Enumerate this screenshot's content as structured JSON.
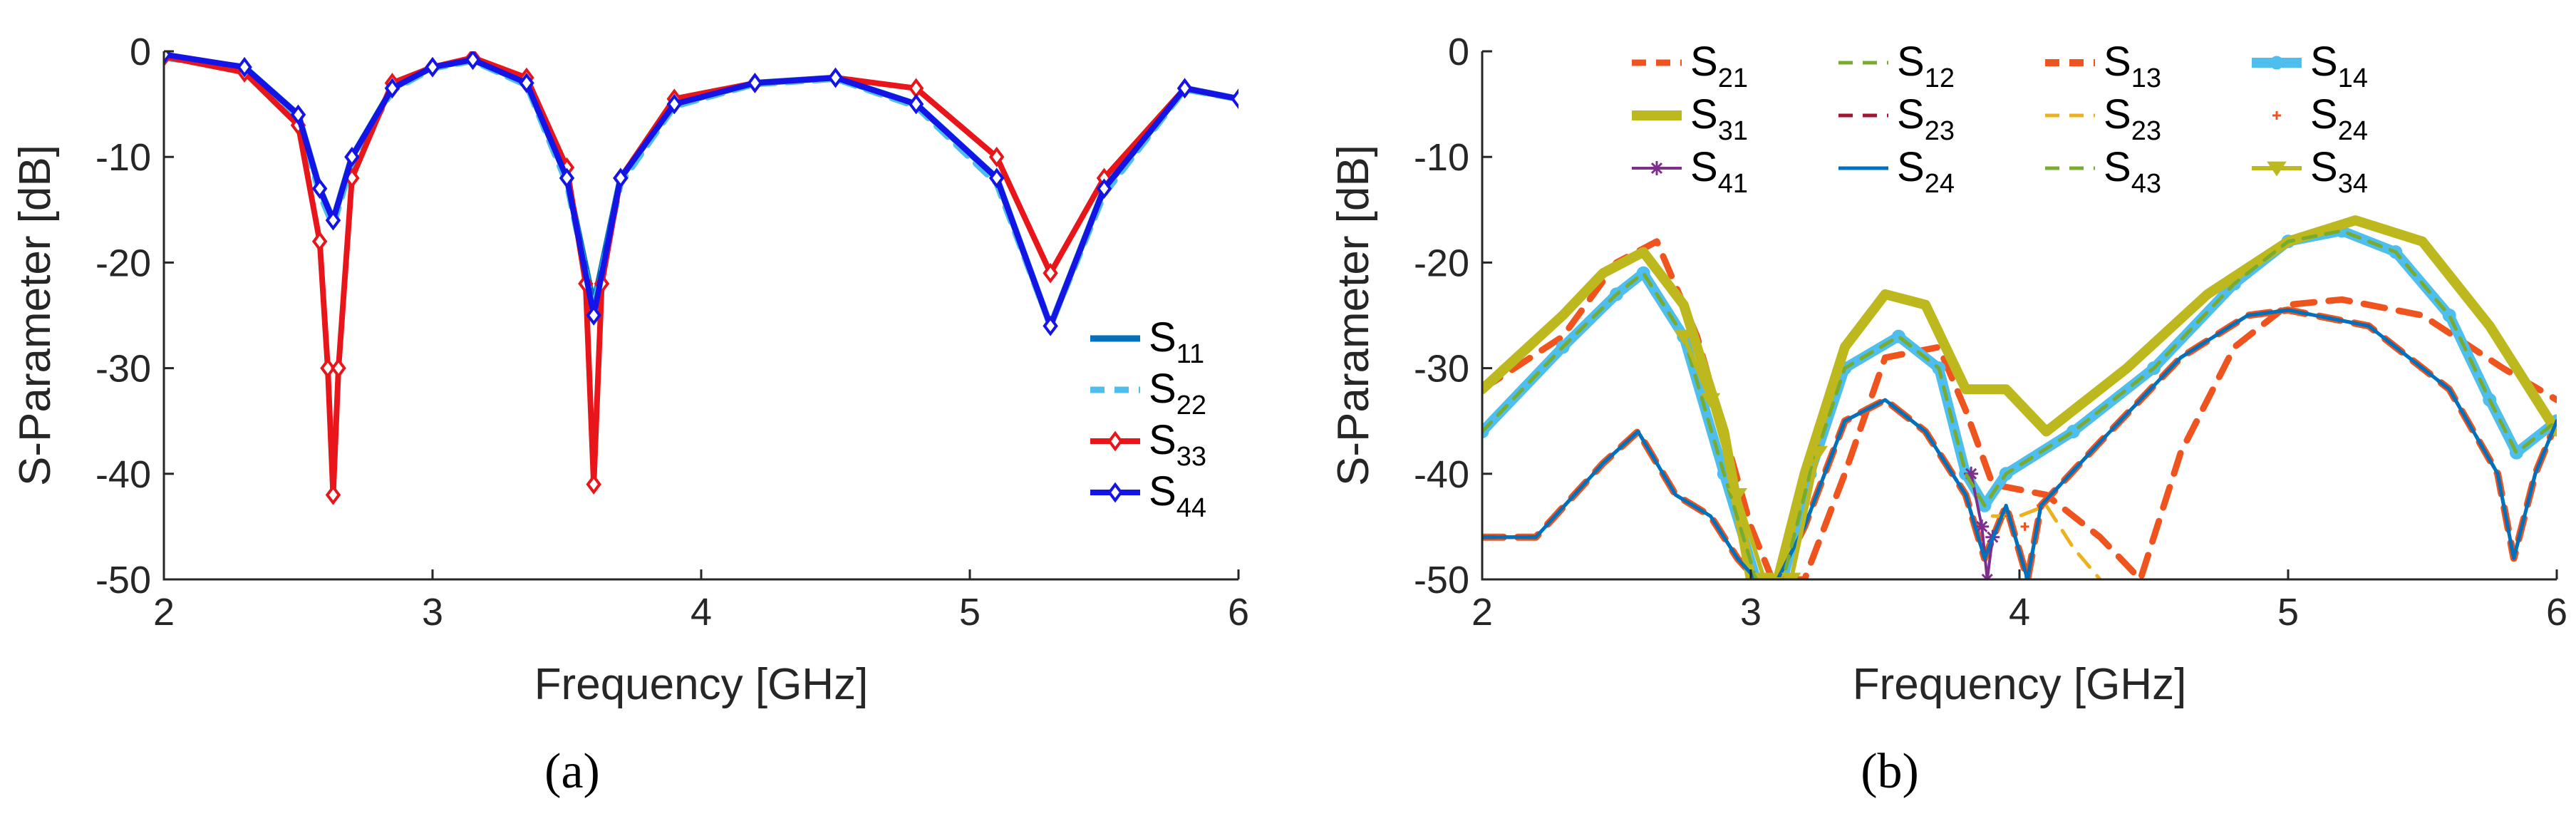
{
  "chart_data": [
    {
      "id": "a",
      "type": "line",
      "panel_label": "(a)",
      "xlabel": "Frequency [GHz]",
      "ylabel": "S-Parameter [dB]",
      "xlim": [
        2,
        6
      ],
      "ylim": [
        -50,
        0
      ],
      "xticks": [
        "2",
        "3",
        "4",
        "5",
        "6"
      ],
      "yticks": [
        "0",
        "-10",
        "-20",
        "-30",
        "-40",
        "-50"
      ],
      "legend_position": "right-lower",
      "series": [
        {
          "name": "S",
          "sub": "11",
          "color": "#0072BD",
          "width": 9,
          "marker": "none",
          "dash": "",
          "x": [
            2.0,
            2.3,
            2.5,
            2.58,
            2.63,
            2.7,
            2.85,
            3.0,
            3.15,
            3.35,
            3.5,
            3.6,
            3.7,
            3.9,
            4.2,
            4.5,
            4.8,
            5.1,
            5.3,
            5.5,
            5.8,
            6.0
          ],
          "y": [
            -0.5,
            -1.5,
            -6,
            -13,
            -16,
            -10,
            -3.5,
            -1.5,
            -0.8,
            -3,
            -12,
            -24,
            -12,
            -5,
            -3,
            -2.5,
            -5,
            -12,
            -26,
            -13,
            -3.5,
            -4.5
          ]
        },
        {
          "name": "S",
          "sub": "22",
          "color": "#4DBEEE",
          "width": 9,
          "marker": "none",
          "dash": "22,16",
          "x": [
            2.0,
            2.3,
            2.5,
            2.58,
            2.63,
            2.7,
            2.85,
            3.0,
            3.15,
            3.35,
            3.5,
            3.6,
            3.7,
            3.9,
            4.2,
            4.5,
            4.8,
            5.1,
            5.3,
            5.5,
            5.8,
            6.0
          ],
          "y": [
            -0.6,
            -1.6,
            -6.2,
            -13.5,
            -16.5,
            -10.5,
            -3.7,
            -1.6,
            -0.9,
            -3.2,
            -12.5,
            -24.5,
            -12.5,
            -5.2,
            -3.1,
            -2.6,
            -5.2,
            -12.5,
            -26,
            -13.5,
            -3.6,
            -4.5
          ]
        },
        {
          "name": "S",
          "sub": "33",
          "color": "#E8161A",
          "width": 8,
          "marker": "diamond",
          "dash": "",
          "x": [
            2.0,
            2.3,
            2.5,
            2.58,
            2.61,
            2.63,
            2.65,
            2.7,
            2.85,
            3.0,
            3.15,
            3.35,
            3.5,
            3.57,
            3.6,
            3.63,
            3.7,
            3.9,
            4.2,
            4.5,
            4.8,
            5.1,
            5.3,
            5.5,
            5.8,
            6.0
          ],
          "y": [
            -0.5,
            -2,
            -7,
            -18,
            -30,
            -42,
            -30,
            -12,
            -3,
            -1.5,
            -0.6,
            -2.5,
            -11,
            -22,
            -41,
            -22,
            -12,
            -4.5,
            -3,
            -2.5,
            -3.5,
            -10,
            -21,
            -12,
            -3.5,
            -4.5
          ]
        },
        {
          "name": "S",
          "sub": "44",
          "color": "#1414E6",
          "width": 8,
          "marker": "diamond",
          "dash": "",
          "x": [
            2.0,
            2.3,
            2.5,
            2.58,
            2.63,
            2.7,
            2.85,
            3.0,
            3.15,
            3.35,
            3.5,
            3.6,
            3.7,
            3.9,
            4.2,
            4.5,
            4.8,
            5.1,
            5.3,
            5.5,
            5.8,
            6.0
          ],
          "y": [
            -0.3,
            -1.5,
            -6,
            -13,
            -16,
            -10,
            -3.5,
            -1.5,
            -0.8,
            -3,
            -12,
            -25,
            -12,
            -5,
            -3,
            -2.5,
            -5,
            -12,
            -26,
            -13,
            -3.5,
            -4.5
          ]
        }
      ]
    },
    {
      "id": "b",
      "type": "line",
      "panel_label": "(b)",
      "xlabel": "Frequency [GHz]",
      "ylabel": "S-Parameter [dB]",
      "xlim": [
        2,
        6
      ],
      "ylim": [
        -50,
        0
      ],
      "xticks": [
        "2",
        "3",
        "4",
        "5",
        "6"
      ],
      "yticks": [
        "0",
        "-10",
        "-20",
        "-30",
        "-40",
        "-50"
      ],
      "legend_position": "top",
      "series": [
        {
          "name": "S",
          "sub": "21",
          "color": "#F0541E",
          "width": 9,
          "marker": "none",
          "dash": "30,20",
          "x": [
            2.0,
            2.3,
            2.5,
            2.65,
            2.8,
            3.0,
            3.08,
            3.2,
            3.35,
            3.5,
            3.7,
            3.8,
            3.9,
            4.1,
            4.3,
            4.45,
            4.6,
            4.8,
            5.0,
            5.2,
            5.5,
            5.8,
            6.0
          ],
          "y": [
            -32,
            -27,
            -20,
            -18,
            -27,
            -45,
            -50,
            -50,
            -40,
            -29,
            -28,
            -34,
            -41,
            -42,
            -46,
            -50,
            -38,
            -28,
            -24,
            -23.5,
            -25,
            -30,
            -33
          ]
        },
        {
          "name": "S",
          "sub": "12",
          "color": "#77AC30",
          "width": 5,
          "marker": "none",
          "dash": "18,14",
          "x": [
            2.0,
            2.2,
            2.45,
            2.58,
            2.72,
            2.85,
            2.95,
            3.02,
            3.1,
            3.2,
            3.35,
            3.5,
            3.65,
            3.8,
            3.87,
            3.95,
            4.03,
            4.08,
            4.3,
            4.6,
            4.85,
            5.0,
            5.3,
            5.6,
            5.78,
            5.84,
            5.92,
            6.0
          ],
          "y": [
            -46,
            -46,
            -39,
            -36,
            -42,
            -44,
            -48,
            -50,
            -50,
            -45,
            -35,
            -33,
            -36,
            -42,
            -48,
            -43,
            -50,
            -43,
            -37,
            -29,
            -25,
            -24.5,
            -26,
            -32,
            -40,
            -48,
            -40,
            -35
          ]
        },
        {
          "name": "S",
          "sub": "13",
          "color": "#F0541E",
          "width": 10,
          "marker": "none",
          "dash": "30,20",
          "x": [
            2.0,
            2.2,
            2.45,
            2.58,
            2.72,
            2.85,
            2.95,
            3.02,
            3.1,
            3.2,
            3.35,
            3.5,
            3.65,
            3.8,
            3.87,
            3.95,
            4.03,
            4.08,
            4.3,
            4.6,
            4.85,
            5.0,
            5.3,
            5.6,
            5.78,
            5.84,
            5.92,
            6.0
          ],
          "y": [
            -46,
            -46,
            -39,
            -36,
            -42,
            -44,
            -48,
            -50,
            -50,
            -45,
            -35,
            -33,
            -36,
            -42,
            -48,
            -43,
            -50,
            -43,
            -37,
            -29,
            -25,
            -24.5,
            -26,
            -32,
            -40,
            -48,
            -40,
            -35
          ]
        },
        {
          "name": "S",
          "sub": "14",
          "color": "#4DBEEE",
          "width": 14,
          "marker": "circle",
          "dash": "",
          "x": [
            2.0,
            2.3,
            2.5,
            2.6,
            2.75,
            2.9,
            3.02,
            3.12,
            3.22,
            3.35,
            3.55,
            3.7,
            3.8,
            3.87,
            3.95,
            4.2,
            4.5,
            4.8,
            5.0,
            5.2,
            5.4,
            5.6,
            5.75,
            5.85,
            6.0
          ],
          "y": [
            -36,
            -28,
            -23,
            -21,
            -27,
            -40,
            -50,
            -50,
            -40,
            -30,
            -27,
            -30,
            -40,
            -43,
            -40,
            -36,
            -30,
            -22,
            -18,
            -17,
            -19,
            -25,
            -33,
            -38,
            -35
          ]
        },
        {
          "name": "S",
          "sub": "31",
          "color": "#BDB81E",
          "width": 14,
          "marker": "none",
          "dash": "",
          "x": [
            2.0,
            2.3,
            2.45,
            2.6,
            2.75,
            2.9,
            3.0,
            3.1,
            3.2,
            3.35,
            3.5,
            3.65,
            3.8,
            3.95,
            4.1,
            4.4,
            4.7,
            5.0,
            5.25,
            5.5,
            5.75,
            6.0
          ],
          "y": [
            -32,
            -25,
            -21,
            -19,
            -24,
            -36,
            -50,
            -50,
            -40,
            -28,
            -23,
            -24,
            -32,
            -32,
            -36,
            -30,
            -23,
            -18,
            -16,
            -18,
            -26,
            -36
          ]
        },
        {
          "name": "S",
          "sub": "23",
          "color": "#A2142F",
          "width": 5,
          "marker": "none",
          "dash": "18,14",
          "x": [
            2.0,
            2.2,
            2.45,
            2.58,
            2.72,
            2.85,
            2.95,
            3.02,
            3.1,
            3.2,
            3.35,
            3.5,
            3.65,
            3.8,
            3.87,
            3.95,
            4.03,
            4.08,
            4.3,
            4.6,
            4.85,
            5.0,
            5.3,
            5.6,
            5.78,
            5.84,
            5.92,
            6.0
          ],
          "y": [
            -46,
            -46,
            -39,
            -36,
            -42,
            -44,
            -48,
            -50,
            -50,
            -45,
            -35,
            -33,
            -36,
            -42,
            -48,
            -43,
            -50,
            -43,
            -37,
            -29,
            -25,
            -24.5,
            -26,
            -32,
            -40,
            -48,
            -40,
            -35
          ]
        },
        {
          "name": "S",
          "sub": "23",
          "color": "#EDB120",
          "width": 5,
          "marker": "none",
          "dash": "24,16",
          "x": [
            3.9,
            4.0,
            4.1,
            4.2,
            4.3
          ],
          "y": [
            -44,
            -44,
            -43,
            -47,
            -50
          ]
        },
        {
          "name": "S",
          "sub": "24",
          "color": "#F0541E",
          "width": 0,
          "marker": "dot",
          "dash": "",
          "x": [
            3.96,
            4.02,
            4.08
          ],
          "y": [
            -44,
            -45,
            -43
          ]
        },
        {
          "name": "S",
          "sub": "41",
          "color": "#7E2F8E",
          "width": 4,
          "marker": "star",
          "dash": "",
          "x": [
            3.82,
            3.86,
            3.88,
            3.9
          ],
          "y": [
            -40,
            -45,
            -50,
            -46
          ]
        },
        {
          "name": "S",
          "sub": "24",
          "color": "#0072BD",
          "width": 5,
          "marker": "none",
          "dash": "",
          "x": [
            2.0,
            2.2,
            2.45,
            2.58,
            2.72,
            2.85,
            2.95,
            3.02,
            3.1,
            3.2,
            3.35,
            3.5,
            3.65,
            3.8,
            3.87,
            3.95,
            4.03,
            4.08,
            4.3,
            4.6,
            4.85,
            5.0,
            5.3,
            5.6,
            5.78,
            5.84,
            5.92,
            6.0
          ],
          "y": [
            -46,
            -46,
            -39,
            -36,
            -42,
            -44,
            -48,
            -50,
            -50,
            -45,
            -35,
            -33,
            -36,
            -42,
            -48,
            -43,
            -50,
            -43,
            -37,
            -29,
            -25,
            -24.5,
            -26,
            -32,
            -40,
            -48,
            -40,
            -35
          ]
        },
        {
          "name": "S",
          "sub": "43",
          "color": "#77AC30",
          "width": 5,
          "marker": "none",
          "dash": "18,14",
          "x": [
            2.0,
            2.3,
            2.5,
            2.6,
            2.75,
            2.9,
            3.02,
            3.12,
            3.22,
            3.35,
            3.55,
            3.7,
            3.8,
            3.87,
            3.95,
            4.2,
            4.5,
            4.8,
            5.0,
            5.2,
            5.4,
            5.6,
            5.75,
            5.85,
            6.0
          ],
          "y": [
            -36,
            -28,
            -23,
            -21,
            -27,
            -40,
            -50,
            -50,
            -40,
            -30,
            -27,
            -30,
            -40,
            -43,
            -40,
            -36,
            -30,
            -22,
            -18,
            -17,
            -19,
            -25,
            -33,
            -38,
            -35
          ]
        },
        {
          "name": "S",
          "sub": "34",
          "color": "#BDB81E",
          "width": 6,
          "marker": "triangle",
          "dash": "",
          "x": [
            2.75,
            2.85,
            2.95,
            3.05,
            3.15,
            3.25
          ],
          "y": [
            -27,
            -33,
            -42,
            -50,
            -50,
            -38
          ]
        }
      ]
    }
  ]
}
